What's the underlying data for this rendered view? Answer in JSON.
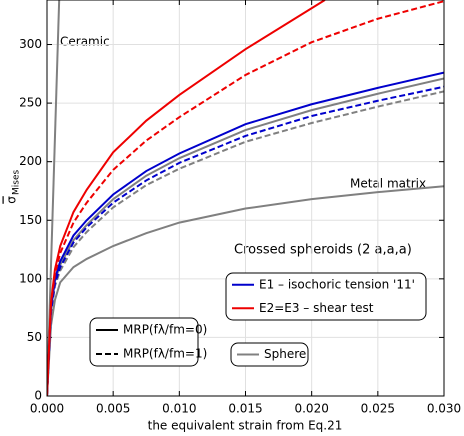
{
  "chart_data": {
    "type": "line",
    "xlabel": "the equivalent strain from Eq.21",
    "ylabel": {
      "symbol": "σ",
      "sub": "Mises"
    },
    "xlim": [
      0,
      0.03
    ],
    "ylim": [
      0,
      338
    ],
    "xticks": [
      {
        "value": 0,
        "label": "0.000"
      },
      {
        "value": 0.005,
        "label": "0.005"
      },
      {
        "value": 0.01,
        "label": "0.010"
      },
      {
        "value": 0.015,
        "label": "0.015"
      },
      {
        "value": 0.02,
        "label": "0.020"
      },
      {
        "value": 0.025,
        "label": "0.025"
      },
      {
        "value": 0.03,
        "label": "0.030"
      }
    ],
    "yticks": [
      0,
      50,
      100,
      150,
      200,
      250,
      300
    ],
    "grid": true,
    "annotations": [
      "Ceramic",
      "Metal matrix",
      "Crossed spheroids (2 a,a,a)"
    ],
    "series": [
      {
        "color": "#808080",
        "dash": false,
        "x": [
          0,
          0.00092
        ],
        "values": [
          0,
          338
        ]
      },
      {
        "color": "#808080",
        "dash": false,
        "x": [
          0,
          0.0003,
          0.0006,
          0.001,
          0.002,
          0.003,
          0.005,
          0.0075,
          0.01,
          0.015,
          0.02,
          0.025,
          0.03
        ],
        "values": [
          0,
          60,
          82,
          97,
          110,
          117,
          128,
          139,
          148,
          160,
          168,
          174,
          179
        ]
      },
      {
        "color": "#808080",
        "dash": false,
        "x": [
          0,
          0.0003,
          0.0006,
          0.001,
          0.002,
          0.003,
          0.005,
          0.0075,
          0.01,
          0.015,
          0.02,
          0.025,
          0.03
        ],
        "values": [
          0,
          73,
          98,
          112,
          133,
          146,
          168,
          188,
          203,
          227,
          244,
          258,
          271
        ]
      },
      {
        "color": "#808080",
        "dash": true,
        "x": [
          0,
          0.0003,
          0.0006,
          0.001,
          0.002,
          0.003,
          0.005,
          0.0075,
          0.01,
          0.015,
          0.02,
          0.025,
          0.03
        ],
        "values": [
          0,
          70,
          94,
          107,
          127,
          140,
          161,
          180,
          194,
          217,
          233,
          247,
          260
        ]
      },
      {
        "color": "#0000cc",
        "dash": false,
        "x": [
          0,
          0.0003,
          0.0006,
          0.001,
          0.002,
          0.003,
          0.005,
          0.0075,
          0.01,
          0.015,
          0.02,
          0.025,
          0.03
        ],
        "values": [
          0,
          75,
          100,
          115,
          137,
          150,
          172,
          192,
          207,
          232,
          249,
          263,
          276
        ]
      },
      {
        "color": "#0000cc",
        "dash": true,
        "x": [
          0,
          0.0003,
          0.0006,
          0.001,
          0.002,
          0.003,
          0.005,
          0.0075,
          0.01,
          0.015,
          0.02,
          0.025,
          0.03
        ],
        "values": [
          0,
          72,
          96,
          110,
          131,
          144,
          165,
          184,
          199,
          222,
          239,
          252,
          264
        ]
      },
      {
        "color": "#ee0000",
        "dash": false,
        "x": [
          0,
          0.0003,
          0.0006,
          0.001,
          0.002,
          0.003,
          0.005,
          0.0075,
          0.01,
          0.015,
          0.021
        ],
        "values": [
          0,
          80,
          108,
          128,
          157,
          176,
          208,
          235,
          257,
          296,
          338
        ]
      },
      {
        "color": "#ee0000",
        "dash": true,
        "x": [
          0,
          0.0003,
          0.0006,
          0.001,
          0.002,
          0.003,
          0.005,
          0.0075,
          0.01,
          0.015,
          0.02,
          0.025,
          0.03
        ],
        "values": [
          0,
          78,
          104,
          122,
          148,
          165,
          193,
          218,
          238,
          274,
          302,
          322,
          337
        ]
      }
    ],
    "legends": [
      [
        {
          "label": "E1 – isochoric tension '11'",
          "color": "#0000cc",
          "dash": false
        },
        {
          "label": "E2=E3 – shear test",
          "color": "#ee0000",
          "dash": false
        }
      ],
      [
        {
          "label": "MRP(fλ/fm=0)",
          "color": "#000000",
          "dash": false
        },
        {
          "label": "MRP(fλ/fm=1)",
          "color": "#000000",
          "dash": true
        }
      ],
      [
        {
          "label": "Sphere",
          "color": "#808080",
          "dash": false
        }
      ]
    ]
  }
}
